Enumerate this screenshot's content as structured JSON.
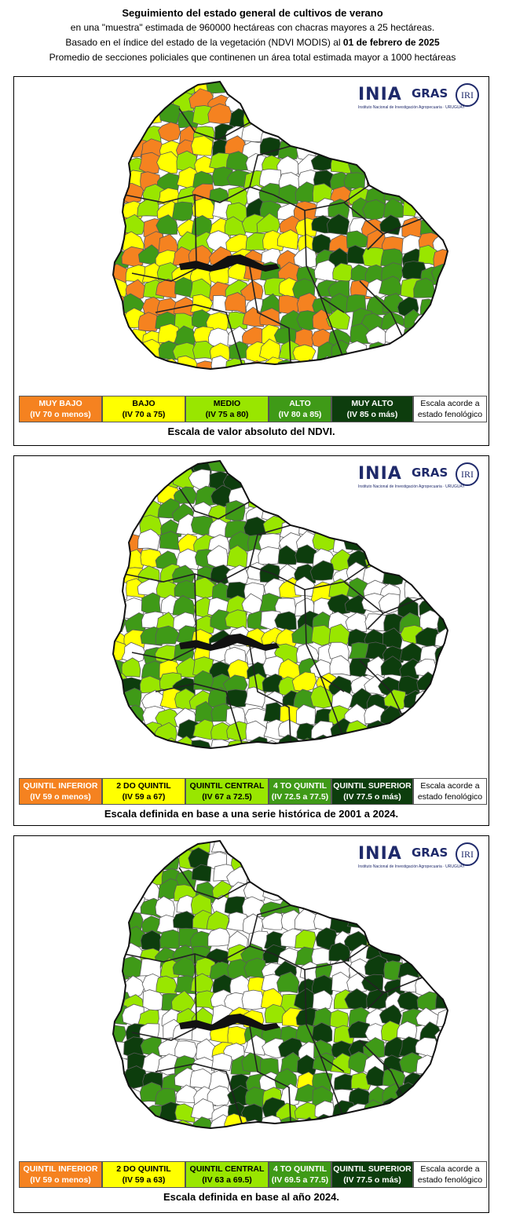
{
  "header": {
    "title": "Seguimiento del estado general de cultivos de verano",
    "line2": "en una \"muestra\" estimada de 960000 hectáreas con chacras mayores  a 25 hectáreas.",
    "line3_a": "Basado en el índice del estado de la vegetación (NDVI MODIS) al ",
    "line3_b": "01 de febrero de 2025",
    "line4": "Promedio de secciones policiales que continenen un área total estimada mayor a 1000 hectáreas"
  },
  "logos": {
    "inia": "INIA",
    "inia_sub": "Instituto Nacional de Investigación Agropecuaria · URUGUAY",
    "gras": "GRAS",
    "iri": "IRI"
  },
  "colors": {
    "muy_bajo": "#f58220",
    "bajo": "#ffff00",
    "medio": "#99e600",
    "alto": "#3f9a17",
    "muy_alto": "#0d3d0d",
    "white": "#ffffff"
  },
  "panels": [
    {
      "legend": [
        {
          "l1": "MUY BAJO",
          "l2": "(IV 70 o menos)",
          "color": "#f58220",
          "text": "#ffffff"
        },
        {
          "l1": "BAJO",
          "l2": "(IV 70 a 75)",
          "color": "#ffff00",
          "text": "#000000"
        },
        {
          "l1": "MEDIO",
          "l2": "(IV 75 a 80)",
          "color": "#99e600",
          "text": "#000000"
        },
        {
          "l1": "ALTO",
          "l2": "(IV 80 a 85)",
          "color": "#3f9a17",
          "text": "#ffffff"
        },
        {
          "l1": "MUY ALTO",
          "l2": "(IV 85 o más)",
          "color": "#0d3d0d",
          "text": "#ffffff"
        },
        {
          "l1": "Escala acorde a",
          "l2": "estado fenológico",
          "color": "#ffffff",
          "text": "#000000"
        }
      ],
      "caption": "Escala de valor absoluto del NDVI."
    },
    {
      "legend": [
        {
          "l1": "QUINTIL INFERIOR",
          "l2": "(IV 59 o menos)",
          "color": "#f58220",
          "text": "#ffffff"
        },
        {
          "l1": "2 DO QUINTIL",
          "l2": "(IV 59 a 67)",
          "color": "#ffff00",
          "text": "#000000"
        },
        {
          "l1": "QUINTIL CENTRAL",
          "l2": "(IV 67 a 72.5)",
          "color": "#99e600",
          "text": "#000000"
        },
        {
          "l1": "4 TO QUINTIL",
          "l2": "(IV 72.5 a 77.5)",
          "color": "#3f9a17",
          "text": "#ffffff"
        },
        {
          "l1": "QUINTIL SUPERIOR",
          "l2": "(IV 77.5 o más)",
          "color": "#0d3d0d",
          "text": "#ffffff"
        },
        {
          "l1": "Escala acorde a",
          "l2": "estado fenológico",
          "color": "#ffffff",
          "text": "#000000"
        }
      ],
      "caption": "Escala definida en base a una serie histórica de 2001 a 2024."
    },
    {
      "legend": [
        {
          "l1": "QUINTIL INFERIOR",
          "l2": "(IV 59 o menos)",
          "color": "#f58220",
          "text": "#ffffff"
        },
        {
          "l1": "2 DO QUINTIL",
          "l2": "(IV 59 a 63)",
          "color": "#ffff00",
          "text": "#000000"
        },
        {
          "l1": "QUINTIL CENTRAL",
          "l2": "(IV 63 a 69.5)",
          "color": "#99e600",
          "text": "#000000"
        },
        {
          "l1": "4 TO QUINTIL",
          "l2": "(IV 69.5 a 77.5)",
          "color": "#3f9a17",
          "text": "#ffffff"
        },
        {
          "l1": "QUINTIL SUPERIOR",
          "l2": "(IV 77.5 o más)",
          "color": "#0d3d0d",
          "text": "#ffffff"
        },
        {
          "l1": "Escala acorde a",
          "l2": "estado fenológico",
          "color": "#ffffff",
          "text": "#000000"
        }
      ],
      "caption": "Escala definida en base al año 2024."
    }
  ]
}
